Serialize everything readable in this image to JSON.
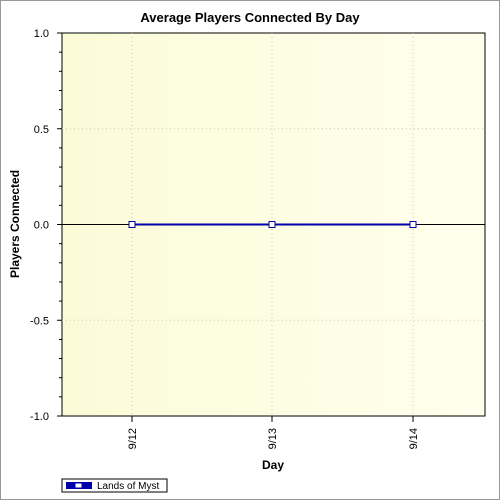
{
  "chart_data": {
    "type": "line",
    "title": "Average Players Connected By Day",
    "xlabel": "Day",
    "ylabel": "Players Connected",
    "categories": [
      "9/12",
      "9/13",
      "9/14"
    ],
    "ylim": [
      -1.0,
      1.0
    ],
    "yticks": [
      "1.0",
      "0.5",
      "0.0",
      "-0.5",
      "-1.0"
    ],
    "series": [
      {
        "name": "Lands of Myst",
        "values": [
          0,
          0,
          0
        ],
        "color": "#0000aa"
      }
    ],
    "grid": true,
    "legend_position": "bottom-left",
    "plot_background": [
      "#fbfbd8",
      "#ffffee"
    ]
  }
}
